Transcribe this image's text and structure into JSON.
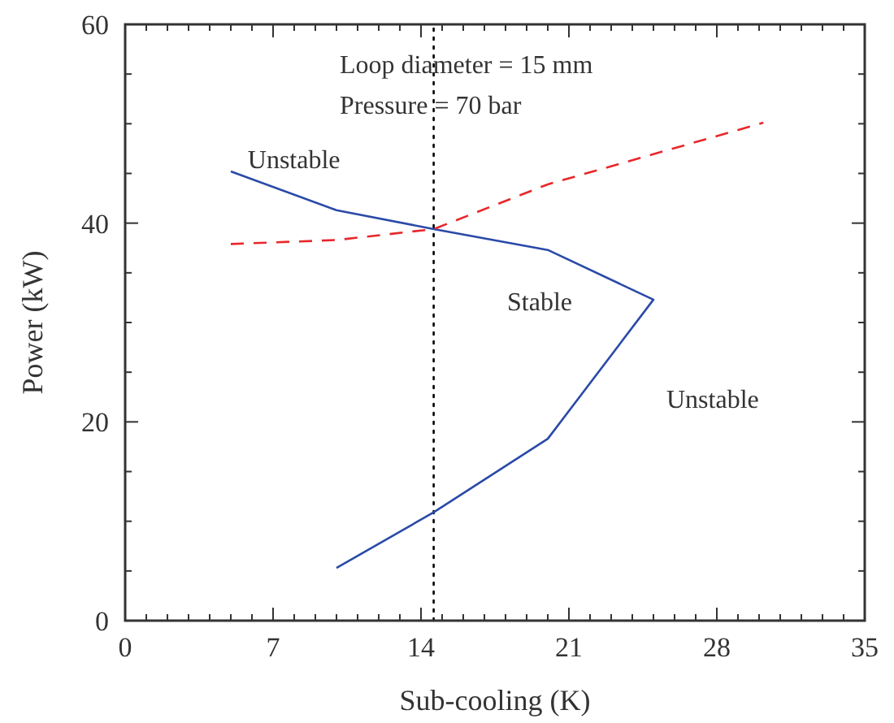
{
  "chart_data": {
    "type": "line",
    "xlabel": "Sub-cooling (K)",
    "ylabel": "Power (kW)",
    "xlim": [
      0,
      35
    ],
    "ylim": [
      0,
      60
    ],
    "xticks": [
      0,
      {
        "value": 1,
        "label": null
      },
      {
        "value": 2,
        "label": null
      },
      {
        "value": 3,
        "label": null
      },
      {
        "value": 4,
        "label": null
      },
      {
        "value": 5,
        "label": null
      },
      {
        "value": 6,
        "label": null
      },
      7,
      {
        "value": 8,
        "label": null
      },
      {
        "value": 9,
        "label": null
      },
      {
        "value": 10,
        "label": null
      },
      {
        "value": 11,
        "label": null
      },
      {
        "value": 12,
        "label": null
      },
      {
        "value": 13,
        "label": null
      },
      14,
      {
        "value": 15,
        "label": null
      },
      {
        "value": 16,
        "label": null
      },
      {
        "value": 17,
        "label": null
      },
      {
        "value": 18,
        "label": null
      },
      {
        "value": 19,
        "label": null
      },
      {
        "value": 20,
        "label": null
      },
      21,
      {
        "value": 22,
        "label": null
      },
      {
        "value": 23,
        "label": null
      },
      {
        "value": 24,
        "label": null
      },
      {
        "value": 25,
        "label": null
      },
      {
        "value": 26,
        "label": null
      },
      {
        "value": 27,
        "label": null
      },
      28,
      {
        "value": 29,
        "label": null
      },
      {
        "value": 30,
        "label": null
      },
      {
        "value": 31,
        "label": null
      },
      {
        "value": 32,
        "label": null
      },
      {
        "value": 33,
        "label": null
      },
      {
        "value": 34,
        "label": null
      },
      35
    ],
    "yticks": [
      0,
      {
        "value": 5,
        "label": null
      },
      {
        "value": 10,
        "label": null
      },
      {
        "value": 15,
        "label": null
      },
      20,
      {
        "value": 25,
        "label": null
      },
      {
        "value": 30,
        "label": null
      },
      {
        "value": 35,
        "label": null
      },
      40,
      {
        "value": 45,
        "label": null
      },
      {
        "value": 50,
        "label": null
      },
      {
        "value": 55,
        "label": null
      },
      60
    ],
    "grid": false,
    "marker": "none",
    "series": [
      {
        "color": "#2a4aa8",
        "line_style": "solid",
        "x": [
          5,
          10,
          14.6,
          20,
          25,
          20,
          14.6,
          10
        ],
        "values": [
          45.2,
          41.3,
          39.4,
          37.3,
          32.3,
          18.3,
          10.9,
          5.3
        ]
      },
      {
        "color": "#e8262a",
        "line_style": "dashed",
        "x": [
          5,
          10,
          14.6,
          20,
          30.2
        ],
        "values": [
          37.9,
          38.3,
          39.4,
          43.9,
          50.1
        ]
      }
    ],
    "ref_lines": [
      {
        "axis": "x",
        "value": 14.6,
        "line_style": "dotted",
        "color": "#000000"
      }
    ],
    "annotations": [
      "Loop diameter = 15 mm",
      "Pressure = 70 bar",
      {
        "text": "Unstable",
        "x": 5.8,
        "y": 45.5
      },
      "Stable",
      "Unstable"
    ]
  }
}
